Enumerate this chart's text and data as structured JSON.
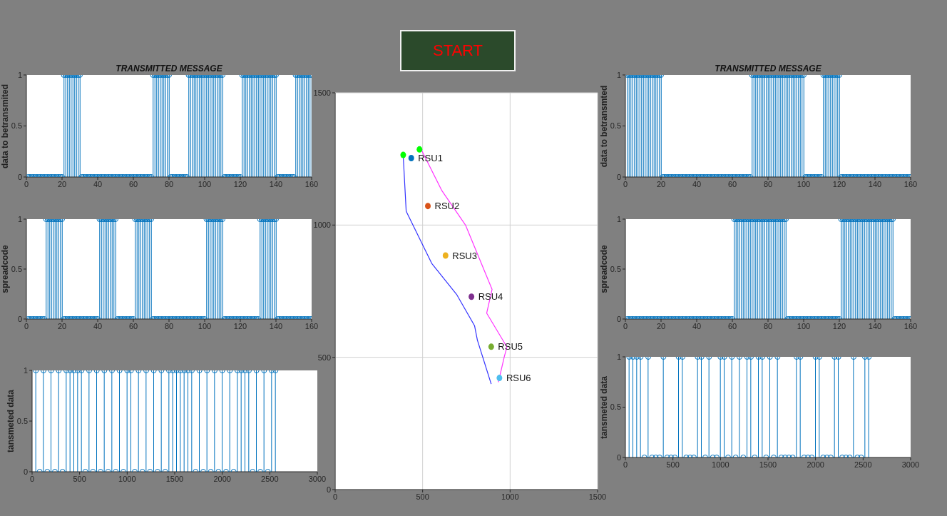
{
  "chart_data": [
    {
      "type": "lollipop",
      "title": "TRANSMITTED MESSAGE",
      "ylabel": "data to betransmited",
      "color": "#0072bd",
      "marker": "circle",
      "xlim": [
        0,
        160
      ],
      "xticks": [
        0,
        20,
        40,
        60,
        80,
        100,
        120,
        140,
        160
      ],
      "ylim": [
        0,
        1
      ],
      "yticks": [
        0,
        0.5,
        1
      ],
      "x": [
        1,
        2,
        3,
        4,
        5,
        6,
        7,
        8,
        9,
        10,
        11,
        12,
        13,
        14,
        15,
        16,
        17,
        18,
        19,
        20,
        21,
        22,
        23,
        24,
        25,
        26,
        27,
        28,
        29,
        30,
        31,
        32,
        33,
        34,
        35,
        36,
        37,
        38,
        39,
        40,
        41,
        42,
        43,
        44,
        45,
        46,
        47,
        48,
        49,
        50,
        51,
        52,
        53,
        54,
        55,
        56,
        57,
        58,
        59,
        60,
        61,
        62,
        63,
        64,
        65,
        66,
        67,
        68,
        69,
        70,
        71,
        72,
        73,
        74,
        75,
        76,
        77,
        78,
        79,
        80,
        81,
        82,
        83,
        84,
        85,
        86,
        87,
        88,
        89,
        90,
        91,
        92,
        93,
        94,
        95,
        96,
        97,
        98,
        99,
        100,
        101,
        102,
        103,
        104,
        105,
        106,
        107,
        108,
        109,
        110,
        111,
        112,
        113,
        114,
        115,
        116,
        117,
        118,
        119,
        120,
        121,
        122,
        123,
        124,
        125,
        126,
        127,
        128,
        129,
        130,
        131,
        132,
        133,
        134,
        135,
        136,
        137,
        138,
        139,
        140,
        141,
        142,
        143,
        144,
        145,
        146,
        147,
        148,
        149,
        150,
        151,
        152,
        153,
        154,
        155,
        156,
        157,
        158,
        159,
        160
      ],
      "values": [
        0,
        0,
        0,
        0,
        0,
        0,
        0,
        0,
        0,
        0,
        0,
        0,
        0,
        0,
        0,
        0,
        0,
        0,
        0,
        0,
        1,
        1,
        1,
        1,
        1,
        1,
        1,
        1,
        1,
        1,
        0,
        0,
        0,
        0,
        0,
        0,
        0,
        0,
        0,
        0,
        0,
        0,
        0,
        0,
        0,
        0,
        0,
        0,
        0,
        0,
        0,
        0,
        0,
        0,
        0,
        0,
        0,
        0,
        0,
        0,
        0,
        0,
        0,
        0,
        0,
        0,
        0,
        0,
        0,
        0,
        1,
        1,
        1,
        1,
        1,
        1,
        1,
        1,
        1,
        1,
        0,
        0,
        0,
        0,
        0,
        0,
        0,
        0,
        0,
        0,
        1,
        1,
        1,
        1,
        1,
        1,
        1,
        1,
        1,
        1,
        1,
        1,
        1,
        1,
        1,
        1,
        1,
        1,
        1,
        1,
        0,
        0,
        0,
        0,
        0,
        0,
        0,
        0,
        0,
        0,
        1,
        1,
        1,
        1,
        1,
        1,
        1,
        1,
        1,
        1,
        1,
        1,
        1,
        1,
        1,
        1,
        1,
        1,
        1,
        1,
        0,
        0,
        0,
        0,
        0,
        0,
        0,
        0,
        0,
        0,
        1,
        1,
        1,
        1,
        1,
        1,
        1,
        1,
        1,
        1
      ]
    },
    {
      "type": "other",
      "annotations": [
        "START"
      ]
    },
    {
      "type": "lollipop",
      "title": "TRANSMITTED MESSAGE",
      "ylabel": "data to betransmted",
      "color": "#0072bd",
      "marker": "circle",
      "xlim": [
        0,
        160
      ],
      "xticks": [
        0,
        20,
        40,
        60,
        80,
        100,
        120,
        140,
        160
      ],
      "ylim": [
        0,
        1
      ],
      "yticks": [
        0,
        0.5,
        1
      ],
      "x": [
        1,
        2,
        3,
        4,
        5,
        6,
        7,
        8,
        9,
        10,
        11,
        12,
        13,
        14,
        15,
        16,
        17,
        18,
        19,
        20,
        21,
        22,
        23,
        24,
        25,
        26,
        27,
        28,
        29,
        30,
        31,
        32,
        33,
        34,
        35,
        36,
        37,
        38,
        39,
        40,
        41,
        42,
        43,
        44,
        45,
        46,
        47,
        48,
        49,
        50,
        51,
        52,
        53,
        54,
        55,
        56,
        57,
        58,
        59,
        60,
        61,
        62,
        63,
        64,
        65,
        66,
        67,
        68,
        69,
        70,
        71,
        72,
        73,
        74,
        75,
        76,
        77,
        78,
        79,
        80,
        81,
        82,
        83,
        84,
        85,
        86,
        87,
        88,
        89,
        90,
        91,
        92,
        93,
        94,
        95,
        96,
        97,
        98,
        99,
        100,
        101,
        102,
        103,
        104,
        105,
        106,
        107,
        108,
        109,
        110,
        111,
        112,
        113,
        114,
        115,
        116,
        117,
        118,
        119,
        120,
        121,
        122,
        123,
        124,
        125,
        126,
        127,
        128,
        129,
        130,
        131,
        132,
        133,
        134,
        135,
        136,
        137,
        138,
        139,
        140,
        141,
        142,
        143,
        144,
        145,
        146,
        147,
        148,
        149,
        150,
        151,
        152,
        153,
        154,
        155,
        156,
        157,
        158,
        159,
        160
      ],
      "values": [
        1,
        1,
        1,
        1,
        1,
        1,
        1,
        1,
        1,
        1,
        1,
        1,
        1,
        1,
        1,
        1,
        1,
        1,
        1,
        1,
        0,
        0,
        0,
        0,
        0,
        0,
        0,
        0,
        0,
        0,
        0,
        0,
        0,
        0,
        0,
        0,
        0,
        0,
        0,
        0,
        0,
        0,
        0,
        0,
        0,
        0,
        0,
        0,
        0,
        0,
        0,
        0,
        0,
        0,
        0,
        0,
        0,
        0,
        0,
        0,
        0,
        0,
        0,
        0,
        0,
        0,
        0,
        0,
        0,
        0,
        1,
        1,
        1,
        1,
        1,
        1,
        1,
        1,
        1,
        1,
        1,
        1,
        1,
        1,
        1,
        1,
        1,
        1,
        1,
        1,
        1,
        1,
        1,
        1,
        1,
        1,
        1,
        1,
        1,
        1,
        0,
        0,
        0,
        0,
        0,
        0,
        0,
        0,
        0,
        0,
        1,
        1,
        1,
        1,
        1,
        1,
        1,
        1,
        1,
        1,
        0,
        0,
        0,
        0,
        0,
        0,
        0,
        0,
        0,
        0,
        0,
        0,
        0,
        0,
        0,
        0,
        0,
        0,
        0,
        0,
        0,
        0,
        0,
        0,
        0,
        0,
        0,
        0,
        0,
        0,
        0,
        0,
        0,
        0,
        0,
        0,
        0,
        0,
        0,
        0
      ]
    },
    {
      "type": "lollipop",
      "ylabel": "spreadcode",
      "color": "#0072bd",
      "marker": "circle",
      "xlim": [
        0,
        160
      ],
      "xticks": [
        0,
        20,
        40,
        60,
        80,
        100,
        120,
        140,
        160
      ],
      "ylim": [
        0,
        1
      ],
      "yticks": [
        0,
        0.5,
        1
      ],
      "x": [
        1,
        2,
        3,
        4,
        5,
        6,
        7,
        8,
        9,
        10,
        11,
        12,
        13,
        14,
        15,
        16,
        17,
        18,
        19,
        20,
        21,
        22,
        23,
        24,
        25,
        26,
        27,
        28,
        29,
        30,
        31,
        32,
        33,
        34,
        35,
        36,
        37,
        38,
        39,
        40,
        41,
        42,
        43,
        44,
        45,
        46,
        47,
        48,
        49,
        50,
        51,
        52,
        53,
        54,
        55,
        56,
        57,
        58,
        59,
        60,
        61,
        62,
        63,
        64,
        65,
        66,
        67,
        68,
        69,
        70,
        71,
        72,
        73,
        74,
        75,
        76,
        77,
        78,
        79,
        80,
        81,
        82,
        83,
        84,
        85,
        86,
        87,
        88,
        89,
        90,
        91,
        92,
        93,
        94,
        95,
        96,
        97,
        98,
        99,
        100,
        101,
        102,
        103,
        104,
        105,
        106,
        107,
        108,
        109,
        110,
        111,
        112,
        113,
        114,
        115,
        116,
        117,
        118,
        119,
        120,
        121,
        122,
        123,
        124,
        125,
        126,
        127,
        128,
        129,
        130,
        131,
        132,
        133,
        134,
        135,
        136,
        137,
        138,
        139,
        140,
        141,
        142,
        143,
        144,
        145,
        146,
        147,
        148,
        149,
        150,
        151,
        152,
        153,
        154,
        155,
        156,
        157,
        158,
        159,
        160
      ],
      "values": [
        0,
        0,
        0,
        0,
        0,
        0,
        0,
        0,
        0,
        0,
        1,
        1,
        1,
        1,
        1,
        1,
        1,
        1,
        1,
        1,
        0,
        0,
        0,
        0,
        0,
        0,
        0,
        0,
        0,
        0,
        0,
        0,
        0,
        0,
        0,
        0,
        0,
        0,
        0,
        0,
        1,
        1,
        1,
        1,
        1,
        1,
        1,
        1,
        1,
        1,
        0,
        0,
        0,
        0,
        0,
        0,
        0,
        0,
        0,
        0,
        1,
        1,
        1,
        1,
        1,
        1,
        1,
        1,
        1,
        1,
        0,
        0,
        0,
        0,
        0,
        0,
        0,
        0,
        0,
        0,
        0,
        0,
        0,
        0,
        0,
        0,
        0,
        0,
        0,
        0,
        0,
        0,
        0,
        0,
        0,
        0,
        0,
        0,
        0,
        0,
        1,
        1,
        1,
        1,
        1,
        1,
        1,
        1,
        1,
        1,
        0,
        0,
        0,
        0,
        0,
        0,
        0,
        0,
        0,
        0,
        0,
        0,
        0,
        0,
        0,
        0,
        0,
        0,
        0,
        0,
        1,
        1,
        1,
        1,
        1,
        1,
        1,
        1,
        1,
        1,
        0,
        0,
        0,
        0,
        0,
        0,
        0,
        0,
        0,
        0,
        0,
        0,
        0,
        0,
        0,
        0,
        0,
        0,
        0,
        0
      ]
    },
    {
      "type": "scatter",
      "grid": true,
      "xlim": [
        0,
        1500
      ],
      "xticks": [
        0,
        500,
        1000,
        1500
      ],
      "ylim": [
        0,
        1500
      ],
      "yticks": [
        0,
        500,
        1000,
        1500
      ],
      "series": [
        {
          "type": "line",
          "color": "#3333ff",
          "x": [
            389,
            406,
            552,
            696,
            797,
            813,
            892
          ],
          "values": [
            1262,
            1052,
            855,
            736,
            619,
            565,
            399
          ]
        },
        {
          "type": "line",
          "color": "#ff33ff",
          "x": [
            493,
            610,
            745,
            897,
            866,
            982,
            967,
            933
          ],
          "values": [
            1284,
            1130,
            1000,
            757,
            667,
            539,
            503,
            406
          ]
        },
        {
          "type": "scatter",
          "color": "#00ff00",
          "x": [
            389,
            482
          ],
          "values": [
            1265,
            1286
          ]
        },
        {
          "type": "scatter",
          "name": "RSU1",
          "color": "#0072bd",
          "x": [
            435
          ],
          "values": [
            1253
          ]
        },
        {
          "type": "scatter",
          "name": "RSU2",
          "color": "#d95319",
          "x": [
            530
          ],
          "values": [
            1072
          ]
        },
        {
          "type": "scatter",
          "name": "RSU3",
          "color": "#edb120",
          "x": [
            631
          ],
          "values": [
            885
          ]
        },
        {
          "type": "scatter",
          "name": "RSU4",
          "color": "#7e2f8e",
          "x": [
            779
          ],
          "values": [
            729
          ]
        },
        {
          "type": "scatter",
          "name": "RSU5",
          "color": "#77ac30",
          "x": [
            892
          ],
          "values": [
            540
          ]
        },
        {
          "type": "scatter",
          "name": "RSU6",
          "color": "#4dbeee",
          "x": [
            939
          ],
          "values": [
            422
          ]
        }
      ]
    },
    {
      "type": "lollipop",
      "ylabel": "spreadcode",
      "color": "#0072bd",
      "marker": "circle",
      "xlim": [
        0,
        160
      ],
      "xticks": [
        0,
        20,
        40,
        60,
        80,
        100,
        120,
        140,
        160
      ],
      "ylim": [
        0,
        1
      ],
      "yticks": [
        0,
        0.5,
        1
      ],
      "x": [
        1,
        2,
        3,
        4,
        5,
        6,
        7,
        8,
        9,
        10,
        11,
        12,
        13,
        14,
        15,
        16,
        17,
        18,
        19,
        20,
        21,
        22,
        23,
        24,
        25,
        26,
        27,
        28,
        29,
        30,
        31,
        32,
        33,
        34,
        35,
        36,
        37,
        38,
        39,
        40,
        41,
        42,
        43,
        44,
        45,
        46,
        47,
        48,
        49,
        50,
        51,
        52,
        53,
        54,
        55,
        56,
        57,
        58,
        59,
        60,
        61,
        62,
        63,
        64,
        65,
        66,
        67,
        68,
        69,
        70,
        71,
        72,
        73,
        74,
        75,
        76,
        77,
        78,
        79,
        80,
        81,
        82,
        83,
        84,
        85,
        86,
        87,
        88,
        89,
        90,
        91,
        92,
        93,
        94,
        95,
        96,
        97,
        98,
        99,
        100,
        101,
        102,
        103,
        104,
        105,
        106,
        107,
        108,
        109,
        110,
        111,
        112,
        113,
        114,
        115,
        116,
        117,
        118,
        119,
        120,
        121,
        122,
        123,
        124,
        125,
        126,
        127,
        128,
        129,
        130,
        131,
        132,
        133,
        134,
        135,
        136,
        137,
        138,
        139,
        140,
        141,
        142,
        143,
        144,
        145,
        146,
        147,
        148,
        149,
        150,
        151,
        152,
        153,
        154,
        155,
        156,
        157,
        158,
        159,
        160
      ],
      "values": [
        0,
        0,
        0,
        0,
        0,
        0,
        0,
        0,
        0,
        0,
        0,
        0,
        0,
        0,
        0,
        0,
        0,
        0,
        0,
        0,
        0,
        0,
        0,
        0,
        0,
        0,
        0,
        0,
        0,
        0,
        0,
        0,
        0,
        0,
        0,
        0,
        0,
        0,
        0,
        0,
        0,
        0,
        0,
        0,
        0,
        0,
        0,
        0,
        0,
        0,
        0,
        0,
        0,
        0,
        0,
        0,
        0,
        0,
        0,
        0,
        1,
        1,
        1,
        1,
        1,
        1,
        1,
        1,
        1,
        1,
        1,
        1,
        1,
        1,
        1,
        1,
        1,
        1,
        1,
        1,
        1,
        1,
        1,
        1,
        1,
        1,
        1,
        1,
        1,
        1,
        0,
        0,
        0,
        0,
        0,
        0,
        0,
        0,
        0,
        0,
        0,
        0,
        0,
        0,
        0,
        0,
        0,
        0,
        0,
        0,
        0,
        0,
        0,
        0,
        0,
        0,
        0,
        0,
        0,
        0,
        1,
        1,
        1,
        1,
        1,
        1,
        1,
        1,
        1,
        1,
        1,
        1,
        1,
        1,
        1,
        1,
        1,
        1,
        1,
        1,
        1,
        1,
        1,
        1,
        1,
        1,
        1,
        1,
        1,
        1,
        0,
        0,
        0,
        0,
        0,
        0,
        0,
        0,
        0,
        0
      ]
    },
    {
      "type": "lollipop",
      "ylabel": "tansmeted data",
      "color": "#0072bd",
      "marker": "circle",
      "xlim": [
        0,
        3000
      ],
      "xticks": [
        0,
        500,
        1000,
        1500,
        2000,
        2500,
        3000
      ],
      "ylim": [
        0,
        1
      ],
      "yticks": [
        0,
        0.5,
        1
      ],
      "x": [
        40,
        80,
        120,
        160,
        200,
        240,
        280,
        320,
        360,
        400,
        440,
        480,
        520,
        560,
        600,
        640,
        680,
        720,
        760,
        800,
        840,
        880,
        920,
        960,
        1000,
        1040,
        1080,
        1120,
        1160,
        1200,
        1240,
        1280,
        1320,
        1360,
        1400,
        1440,
        1480,
        1520,
        1560,
        1600,
        1640,
        1680,
        1720,
        1760,
        1800,
        1840,
        1880,
        1920,
        1960,
        2000,
        2040,
        2080,
        2120,
        2160,
        2200,
        2240,
        2280,
        2320,
        2360,
        2400,
        2440,
        2480,
        2520,
        2560
      ],
      "values": [
        1,
        0,
        1,
        0,
        1,
        0,
        1,
        0,
        1,
        1,
        1,
        1,
        1,
        0,
        1,
        0,
        1,
        0,
        1,
        0,
        1,
        0,
        1,
        0,
        1,
        1,
        0,
        1,
        0,
        1,
        0,
        1,
        0,
        1,
        0,
        1,
        1,
        1,
        1,
        1,
        1,
        1,
        0,
        1,
        0,
        1,
        0,
        1,
        0,
        1,
        0,
        1,
        0,
        1,
        1,
        1,
        1,
        0,
        1,
        0,
        1,
        0,
        1,
        1
      ]
    },
    {
      "type": "lollipop",
      "ylabel": "tansmeted data",
      "color": "#0072bd",
      "marker": "circle",
      "xlim": [
        0,
        3000
      ],
      "xticks": [
        0,
        500,
        1000,
        1500,
        2000,
        2500,
        3000
      ],
      "ylim": [
        0,
        1
      ],
      "yticks": [
        0,
        0.5,
        1
      ],
      "x": [
        40,
        80,
        120,
        160,
        200,
        240,
        280,
        320,
        360,
        400,
        440,
        480,
        520,
        560,
        600,
        640,
        680,
        720,
        760,
        800,
        840,
        880,
        920,
        960,
        1000,
        1040,
        1080,
        1120,
        1160,
        1200,
        1240,
        1280,
        1320,
        1360,
        1400,
        1440,
        1480,
        1520,
        1560,
        1600,
        1640,
        1680,
        1720,
        1760,
        1800,
        1840,
        1880,
        1920,
        1960,
        2000,
        2040,
        2080,
        2120,
        2160,
        2200,
        2240,
        2280,
        2320,
        2360,
        2400,
        2440,
        2480,
        2520,
        2560
      ],
      "values": [
        1,
        1,
        1,
        1,
        0,
        1,
        0,
        0,
        0,
        1,
        0,
        0,
        0,
        1,
        1,
        0,
        0,
        0,
        1,
        1,
        0,
        1,
        0,
        0,
        1,
        1,
        0,
        1,
        0,
        1,
        0,
        1,
        1,
        0,
        1,
        1,
        0,
        1,
        0,
        1,
        0,
        0,
        0,
        0,
        1,
        1,
        0,
        0,
        0,
        1,
        1,
        0,
        0,
        0,
        1,
        1,
        0,
        0,
        0,
        1,
        0,
        0,
        1,
        1
      ]
    }
  ]
}
